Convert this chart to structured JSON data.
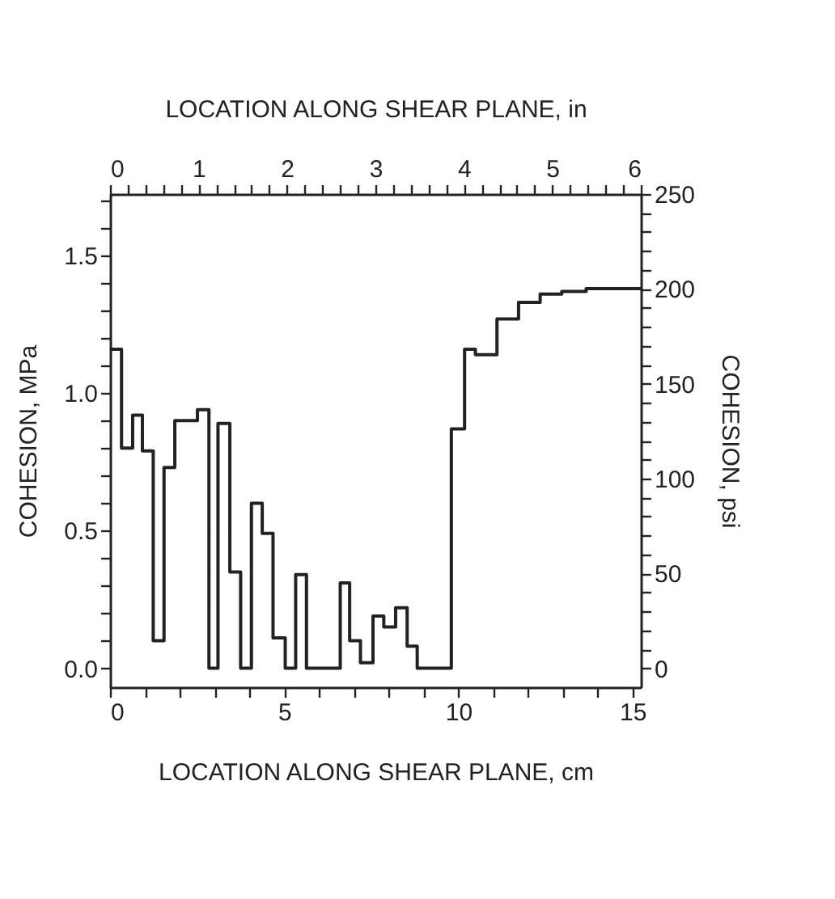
{
  "chart_data": {
    "type": "step",
    "xlabel": "LOCATION ALONG SHEAR PLANE, cm",
    "x2label": "LOCATION ALONG SHEAR PLANE, in",
    "ylabel": "COHESION, MPa",
    "y2label": "COHESION, psi",
    "x": [
      0,
      0.33,
      0.65,
      0.93,
      1.24,
      1.55,
      1.86,
      2.51,
      2.84,
      3.1,
      3.44,
      3.75,
      4.06,
      4.37,
      4.68,
      5.03,
      5.33,
      5.64,
      6.61,
      6.88,
      7.19,
      7.55,
      7.86,
      8.2,
      8.53,
      8.82,
      9.8,
      10.18,
      10.49,
      11.11,
      11.73,
      12.35,
      12.97,
      13.67,
      15.24
    ],
    "series": [
      {
        "color": "#222222",
        "values": [
          1.16,
          0.8,
          0.92,
          0.79,
          0.1,
          0.73,
          0.9,
          0.94,
          0.0,
          0.89,
          0.35,
          0.0,
          0.6,
          0.49,
          0.11,
          0.0,
          0.34,
          0.0,
          0.31,
          0.1,
          0.02,
          0.19,
          0.15,
          0.22,
          0.08,
          0.0,
          0.87,
          1.16,
          1.14,
          1.27,
          1.33,
          1.36,
          1.37,
          1.38,
          1.38
        ]
      }
    ],
    "xlim": [
      0,
      15.24
    ],
    "xticks": [
      0,
      {
        "value": 1,
        "label": null
      },
      {
        "value": 2,
        "label": null
      },
      {
        "value": 3,
        "label": null
      },
      {
        "value": 4,
        "label": null
      },
      5,
      {
        "value": 6,
        "label": null
      },
      {
        "value": 7,
        "label": null
      },
      {
        "value": 8,
        "label": null
      },
      {
        "value": 9,
        "label": null
      },
      10,
      {
        "value": 11,
        "label": null
      },
      {
        "value": 12,
        "label": null
      },
      {
        "value": 13,
        "label": null
      },
      {
        "value": 14,
        "label": null
      },
      15
    ],
    "ylim": [
      -0.069,
      1.724
    ],
    "yticks": [
      {
        "value": 0,
        "label": "0.0"
      },
      {
        "value": 0.1,
        "label": null
      },
      {
        "value": 0.2,
        "label": null
      },
      {
        "value": 0.3,
        "label": null
      },
      {
        "value": 0.4,
        "label": null
      },
      {
        "value": 0.5,
        "label": "0.5"
      },
      {
        "value": 0.6,
        "label": null
      },
      {
        "value": 0.7,
        "label": null
      },
      {
        "value": 0.8,
        "label": null
      },
      {
        "value": 0.9,
        "label": null
      },
      {
        "value": 1,
        "label": "1.0"
      },
      {
        "value": 1.1,
        "label": null
      },
      {
        "value": 1.2,
        "label": null
      },
      {
        "value": 1.3,
        "label": null
      },
      {
        "value": 1.4,
        "label": null
      },
      {
        "value": 1.5,
        "label": "1.5"
      },
      {
        "value": 1.6,
        "label": null
      },
      {
        "value": 1.7,
        "label": null
      }
    ],
    "x2lim": [
      0,
      6
    ],
    "x2ticks": [
      0,
      {
        "value": 0.2,
        "label": null
      },
      {
        "value": 0.4,
        "label": null
      },
      {
        "value": 0.6,
        "label": null
      },
      {
        "value": 0.8,
        "label": null
      },
      1,
      {
        "value": 1.2,
        "label": null
      },
      {
        "value": 1.4,
        "label": null
      },
      {
        "value": 1.6,
        "label": null
      },
      {
        "value": 1.8,
        "label": null
      },
      2,
      {
        "value": 2.2,
        "label": null
      },
      {
        "value": 2.4,
        "label": null
      },
      {
        "value": 2.6,
        "label": null
      },
      {
        "value": 2.8,
        "label": null
      },
      3,
      {
        "value": 3.2,
        "label": null
      },
      {
        "value": 3.4,
        "label": null
      },
      {
        "value": 3.6,
        "label": null
      },
      {
        "value": 3.8,
        "label": null
      },
      4,
      {
        "value": 4.2,
        "label": null
      },
      {
        "value": 4.4,
        "label": null
      },
      {
        "value": 4.6,
        "label": null
      },
      {
        "value": 4.8,
        "label": null
      },
      5,
      {
        "value": 5.2,
        "label": null
      },
      {
        "value": 5.4,
        "label": null
      },
      {
        "value": 5.6,
        "label": null
      },
      {
        "value": 5.8,
        "label": null
      },
      6
    ],
    "y2lim": [
      -10,
      250
    ],
    "y2ticks": [
      0,
      {
        "value": 10,
        "label": null
      },
      {
        "value": 20,
        "label": null
      },
      {
        "value": 30,
        "label": null
      },
      {
        "value": 40,
        "label": null
      },
      50,
      {
        "value": 60,
        "label": null
      },
      {
        "value": 70,
        "label": null
      },
      {
        "value": 80,
        "label": null
      },
      {
        "value": 90,
        "label": null
      },
      100,
      {
        "value": 110,
        "label": null
      },
      {
        "value": 120,
        "label": null
      },
      {
        "value": 130,
        "label": null
      },
      {
        "value": 140,
        "label": null
      },
      150,
      {
        "value": 160,
        "label": null
      },
      {
        "value": 170,
        "label": null
      },
      {
        "value": 180,
        "label": null
      },
      {
        "value": 190,
        "label": null
      },
      200,
      {
        "value": 210,
        "label": null
      },
      {
        "value": 220,
        "label": null
      },
      {
        "value": 230,
        "label": null
      },
      {
        "value": 240,
        "label": null
      },
      250
    ],
    "grid": false,
    "line_style": "solid"
  }
}
